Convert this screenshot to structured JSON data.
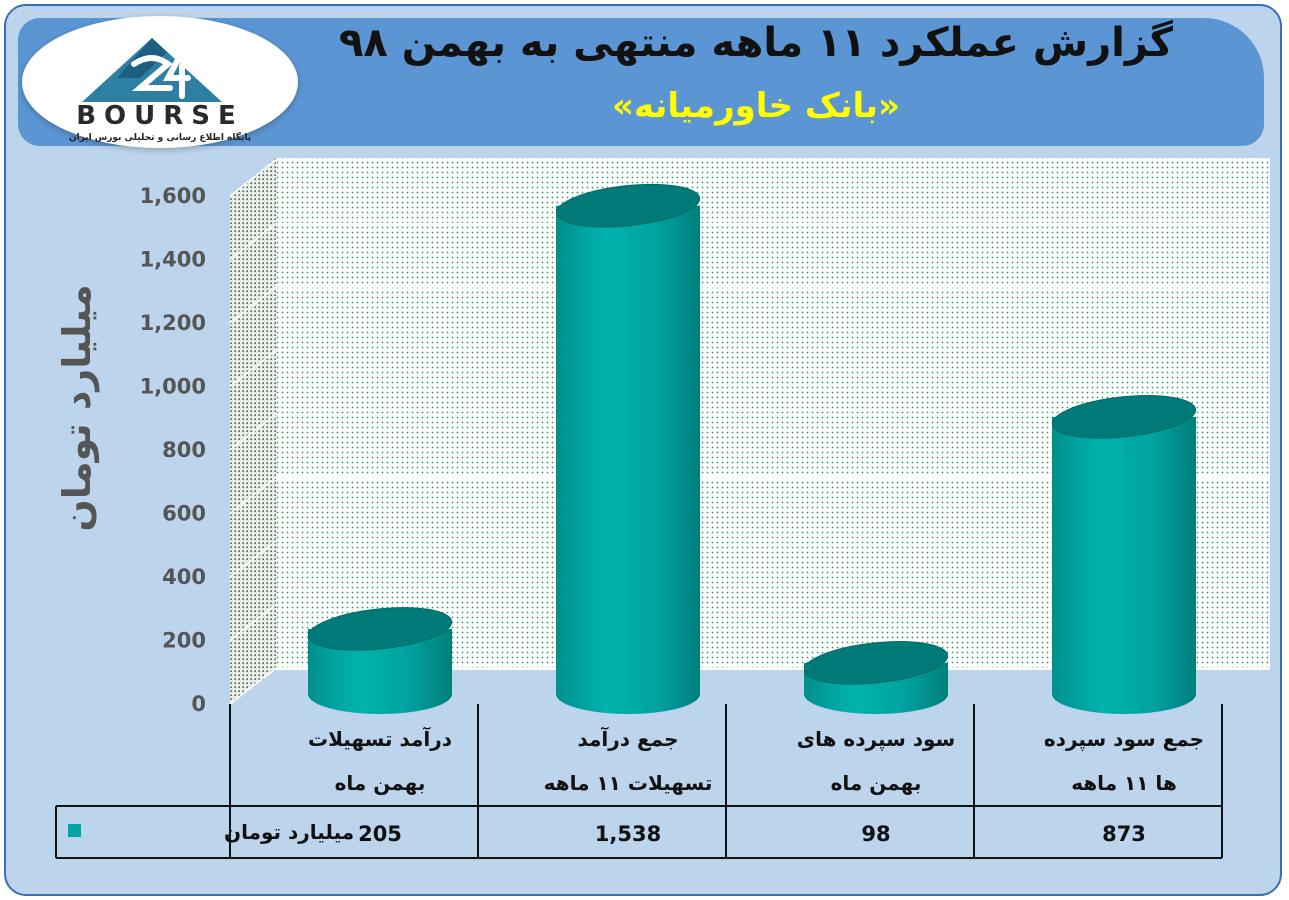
{
  "header": {
    "title": "گزارش عملکرد ۱۱ ماهه منتهی به بهمن ۹۸",
    "subtitle": "«بانک خاورمیانه»"
  },
  "logo": {
    "name": "BOURSE",
    "mark": "24",
    "tagline": "پایگاه اطلاع رسانی و تحلیلی بورس ایران",
    "icon": "mountain-24-logo-icon"
  },
  "colors": {
    "bar": "#00a6a2",
    "bar_dark": "#007a78",
    "frame": "#bcd4ec",
    "header": "#5b95d3"
  },
  "chart_data": {
    "type": "bar",
    "style": "3d-cylinder",
    "title": "گزارش عملکرد ۱۱ ماهه منتهی به بهمن ۹۸",
    "subtitle": "«بانک خاورمیانه»",
    "ylabel": "میلیارد تومان",
    "ylim": [
      0,
      1600
    ],
    "yticks": [
      "0",
      "200",
      "400",
      "600",
      "800",
      "1,000",
      "1,200",
      "1,400",
      "1,600"
    ],
    "categories": [
      [
        "درآمد تسهیلات",
        "بهمن ماه"
      ],
      [
        "جمع درآمد",
        "تسهیلات ۱۱ ماهه"
      ],
      [
        "سود سپرده های",
        "بهمن ماه"
      ],
      [
        "جمع سود سپرده",
        "ها ۱۱ ماهه"
      ]
    ],
    "series": [
      {
        "name": "میلیارد تومان",
        "values": [
          205,
          1538,
          98,
          873
        ],
        "labels": [
          "205",
          "1,538",
          "98",
          "873"
        ]
      }
    ],
    "grid": true,
    "legend": "data-table"
  }
}
